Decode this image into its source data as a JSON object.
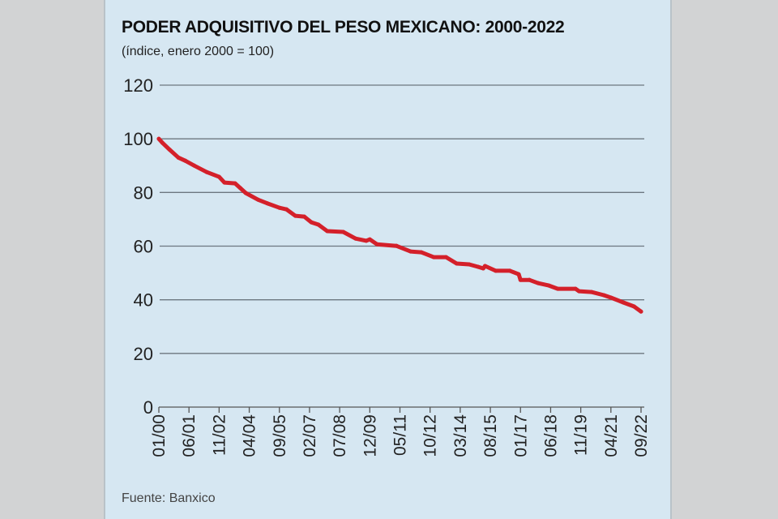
{
  "chart_data": {
    "type": "line",
    "title": "PODER ADQUISITIVO DEL PESO MEXICANO: 2000-2022",
    "subtitle": "(índice, enero 2000 = 100)",
    "source": "Fuente: Banxico",
    "xlabel": "",
    "ylabel": "",
    "ylim": [
      0,
      120
    ],
    "yticks": [
      "0",
      "20",
      "40",
      "60",
      "80",
      "100",
      "120"
    ],
    "xlim": [
      "2000-01",
      "2022-09"
    ],
    "xticks": [
      "01/00",
      "06/01",
      "11/02",
      "04/04",
      "09/05",
      "02/07",
      "07/08",
      "12/09",
      "05/11",
      "10/12",
      "03/14",
      "08/15",
      "01/17",
      "06/18",
      "11/19",
      "04/21",
      "09/22"
    ],
    "grid": true,
    "line_color": "#d4202a",
    "series": [
      {
        "x": [
          "2000-01",
          "2000-03",
          "2000-07",
          "2000-12",
          "2001-04",
          "2001-09",
          "2002-04",
          "2002-11",
          "2003-02",
          "2003-08",
          "2003-11",
          "2004-02",
          "2004-09",
          "2005-02",
          "2005-09",
          "2006-01",
          "2006-06",
          "2006-11",
          "2007-03",
          "2007-07",
          "2007-12",
          "2008-09",
          "2009-04",
          "2009-10",
          "2009-12",
          "2010-04",
          "2011-03",
          "2011-11",
          "2012-05",
          "2012-12",
          "2013-07",
          "2014-01",
          "2014-08",
          "2015-01",
          "2015-04",
          "2015-05",
          "2015-11",
          "2016-07",
          "2016-12",
          "2017-01",
          "2017-06",
          "2017-11",
          "2018-05",
          "2018-10",
          "2019-08",
          "2019-10",
          "2020-05",
          "2020-12",
          "2021-04",
          "2021-11",
          "2022-05",
          "2022-09"
        ],
        "y": [
          100,
          98.5,
          96,
          93,
          91.8,
          90,
          87.6,
          85.8,
          83.7,
          83.4,
          81.6,
          79.8,
          77.3,
          76,
          74.3,
          73.7,
          71.3,
          71,
          68.9,
          68,
          65.6,
          65.3,
          62.8,
          62,
          62.5,
          60.7,
          60.1,
          58,
          57.7,
          55.9,
          55.9,
          53.5,
          53.2,
          52.3,
          51.7,
          52.6,
          50.8,
          50.8,
          49.5,
          47.4,
          47.4,
          46.2,
          45.3,
          44.1,
          44.1,
          43.2,
          42.9,
          41.7,
          40.8,
          39,
          37.5,
          35.6
        ]
      }
    ]
  }
}
